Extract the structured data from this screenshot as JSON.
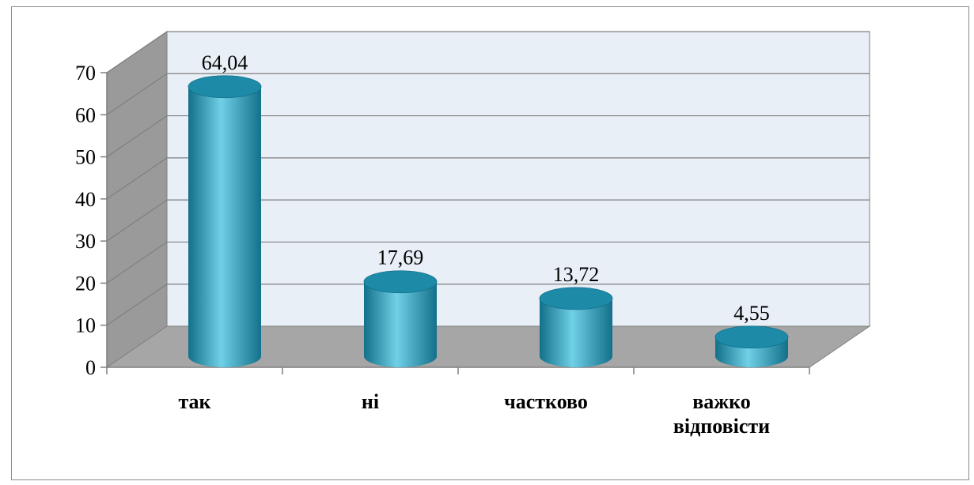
{
  "chart_data": {
    "type": "bar",
    "style": "3d-cylinder",
    "categories": [
      "так",
      "ні",
      "частково",
      [
        "важко",
        "відповісти"
      ]
    ],
    "values": [
      64.04,
      17.69,
      13.72,
      4.55
    ],
    "value_labels": [
      "64,04",
      "17,69",
      "13,72",
      "4,55"
    ],
    "y_ticks": [
      "0",
      "10",
      "20",
      "30",
      "40",
      "50",
      "60",
      "70"
    ],
    "ylim": [
      0,
      70
    ],
    "grid": true,
    "legend": false,
    "colors": {
      "bar": "#2aa7c8",
      "bar_light": "#6fd0e6",
      "bar_dark": "#13708a",
      "bar_top": "#1d8aa8",
      "wall": "#e8eff6",
      "floor": "#a6a6a6",
      "side_wall": "#9a9a9a",
      "grid": "#7f7f7f"
    }
  }
}
